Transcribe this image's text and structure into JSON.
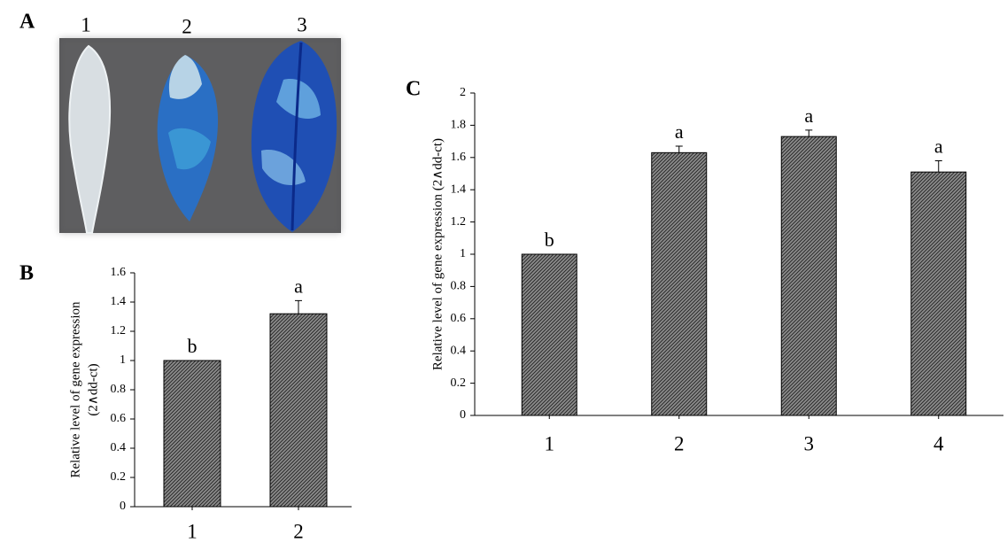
{
  "photo": {
    "panel_label": "A",
    "leaf_labels": [
      "1",
      "2",
      "3"
    ]
  },
  "chart_data": [
    {
      "type": "bar",
      "panel_label": "B",
      "ylabel": [
        "Relative level of gene expression",
        "(2∧dd-ct)"
      ],
      "categories": [
        "1",
        "2"
      ],
      "values": [
        1,
        1.32
      ],
      "errors": [
        0,
        0.09
      ],
      "annotations": [
        "b",
        "a"
      ],
      "color": "#8c8c8c",
      "ylim": [
        0,
        1.6
      ],
      "yticks": [
        0,
        0.2,
        0.4,
        0.6,
        0.8,
        1,
        1.2,
        1.4,
        1.6
      ]
    },
    {
      "type": "bar",
      "panel_label": "C",
      "ylabel": [
        "Relative level of gene expression (2∧dd-ct)"
      ],
      "categories": [
        "1",
        "2",
        "3",
        "4"
      ],
      "values": [
        1,
        1.63,
        1.73,
        1.51
      ],
      "errors": [
        0,
        0.04,
        0.04,
        0.07
      ],
      "annotations": [
        "b",
        "a",
        "a",
        "a"
      ],
      "color": "#8c8c8c",
      "ylim": [
        0,
        2
      ],
      "yticks": [
        0,
        0.2,
        0.4,
        0.6,
        0.8,
        1,
        1.2,
        1.4,
        1.6,
        1.8,
        2
      ]
    }
  ]
}
